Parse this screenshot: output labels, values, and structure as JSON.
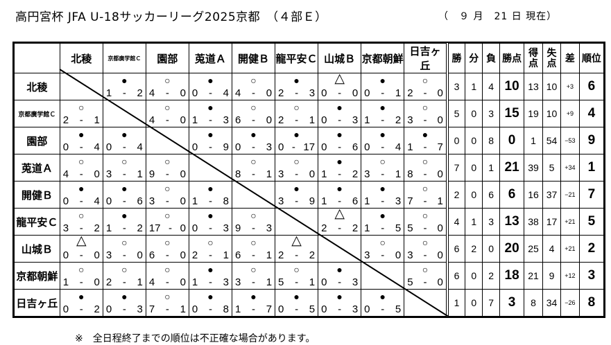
{
  "header": {
    "title": "高円宮杯 JFA U-18サッカーリーグ2025京都　（４部Ｅ）",
    "as_of": "（　９ 月　21 日 現在）"
  },
  "stat_headers": [
    "勝",
    "分",
    "負",
    "勝点",
    "得点",
    "失点",
    "差",
    "順位"
  ],
  "teams": [
    {
      "name": "北稜",
      "small": false
    },
    {
      "name": "京都廣学館Ｃ",
      "small": true
    },
    {
      "name": "園部",
      "small": false
    },
    {
      "name": "莵道Ａ",
      "small": false
    },
    {
      "name": "開健Ｂ",
      "small": false
    },
    {
      "name": "龍平安Ｃ",
      "small": false
    },
    {
      "name": "山城Ｂ",
      "small": false
    },
    {
      "name": "京都朝鮮",
      "small": false
    },
    {
      "name": "日吉ヶ丘",
      "small": false
    }
  ],
  "results": [
    [
      null,
      [
        "●",
        "1",
        "2"
      ],
      [
        "○",
        "4",
        "0"
      ],
      [
        "●",
        "0",
        "4"
      ],
      [
        "○",
        "4",
        "0"
      ],
      [
        "●",
        "2",
        "3"
      ],
      [
        "△",
        "0",
        "0"
      ],
      [
        "●",
        "0",
        "1"
      ],
      [
        "○",
        "2",
        "0"
      ]
    ],
    [
      [
        "○",
        "2",
        "1"
      ],
      null,
      [
        "○",
        "4",
        "0"
      ],
      [
        "●",
        "1",
        "3"
      ],
      [
        "○",
        "6",
        "0"
      ],
      [
        "○",
        "2",
        "1"
      ],
      [
        "●",
        "0",
        "3"
      ],
      [
        "●",
        "1",
        "2"
      ],
      [
        "○",
        "3",
        "0"
      ]
    ],
    [
      [
        "●",
        "0",
        "4"
      ],
      [
        "●",
        "0",
        "4"
      ],
      null,
      [
        "●",
        "0",
        "9"
      ],
      [
        "●",
        "0",
        "3"
      ],
      [
        "●",
        "0",
        "17"
      ],
      [
        "●",
        "0",
        "6"
      ],
      [
        "●",
        "0",
        "4"
      ],
      [
        "●",
        "1",
        "7"
      ]
    ],
    [
      [
        "○",
        "4",
        "0"
      ],
      [
        "○",
        "3",
        "1"
      ],
      [
        "○",
        "9",
        "0"
      ],
      null,
      [
        "○",
        "8",
        "1"
      ],
      [
        "○",
        "3",
        "0"
      ],
      [
        "●",
        "1",
        "2"
      ],
      [
        "○",
        "3",
        "1"
      ],
      [
        "○",
        "8",
        "0"
      ]
    ],
    [
      [
        "●",
        "0",
        "4"
      ],
      [
        "●",
        "0",
        "6"
      ],
      [
        "○",
        "3",
        "0"
      ],
      [
        "●",
        "1",
        "8"
      ],
      null,
      [
        "●",
        "3",
        "9"
      ],
      [
        "●",
        "1",
        "6"
      ],
      [
        "●",
        "1",
        "3"
      ],
      [
        "○",
        "7",
        "1"
      ]
    ],
    [
      [
        "○",
        "3",
        "2"
      ],
      [
        "●",
        "1",
        "2"
      ],
      [
        "○",
        "17",
        "0"
      ],
      [
        "●",
        "0",
        "3"
      ],
      [
        "○",
        "9",
        "3"
      ],
      null,
      [
        "△",
        "2",
        "2"
      ],
      [
        "●",
        "1",
        "5"
      ],
      [
        "○",
        "5",
        "0"
      ]
    ],
    [
      [
        "△",
        "0",
        "0"
      ],
      [
        "○",
        "3",
        "0"
      ],
      [
        "○",
        "6",
        "0"
      ],
      [
        "○",
        "2",
        "1"
      ],
      [
        "○",
        "6",
        "1"
      ],
      [
        "△",
        "2",
        "2"
      ],
      null,
      [
        "○",
        "3",
        "0"
      ],
      [
        "○",
        "3",
        "0"
      ]
    ],
    [
      [
        "○",
        "1",
        "0"
      ],
      [
        "○",
        "2",
        "1"
      ],
      [
        "○",
        "4",
        "0"
      ],
      [
        "●",
        "1",
        "3"
      ],
      [
        "○",
        "3",
        "1"
      ],
      [
        "○",
        "5",
        "1"
      ],
      [
        "●",
        "0",
        "3"
      ],
      null,
      [
        "○",
        "5",
        "0"
      ]
    ],
    [
      [
        "●",
        "0",
        "2"
      ],
      [
        "●",
        "0",
        "3"
      ],
      [
        "○",
        "7",
        "1"
      ],
      [
        "●",
        "0",
        "8"
      ],
      [
        "●",
        "1",
        "7"
      ],
      [
        "●",
        "0",
        "5"
      ],
      [
        "●",
        "0",
        "3"
      ],
      [
        "●",
        "0",
        "5"
      ],
      null
    ]
  ],
  "score_separator": "-",
  "standings": [
    {
      "w": "3",
      "d": "1",
      "l": "4",
      "pts": "10",
      "gf": "13",
      "ga": "10",
      "gd": "+3",
      "rank": "6"
    },
    {
      "w": "5",
      "d": "0",
      "l": "3",
      "pts": "15",
      "gf": "19",
      "ga": "10",
      "gd": "+9",
      "rank": "4"
    },
    {
      "w": "0",
      "d": "0",
      "l": "8",
      "pts": "0",
      "gf": "1",
      "ga": "54",
      "gd": "−53",
      "rank": "9"
    },
    {
      "w": "7",
      "d": "0",
      "l": "1",
      "pts": "21",
      "gf": "39",
      "ga": "5",
      "gd": "+34",
      "rank": "1"
    },
    {
      "w": "2",
      "d": "0",
      "l": "6",
      "pts": "6",
      "gf": "16",
      "ga": "37",
      "gd": "−21",
      "rank": "7"
    },
    {
      "w": "4",
      "d": "1",
      "l": "3",
      "pts": "13",
      "gf": "38",
      "ga": "17",
      "gd": "+21",
      "rank": "5"
    },
    {
      "w": "6",
      "d": "2",
      "l": "0",
      "pts": "20",
      "gf": "25",
      "ga": "4",
      "gd": "+21",
      "rank": "2"
    },
    {
      "w": "6",
      "d": "0",
      "l": "2",
      "pts": "18",
      "gf": "21",
      "ga": "9",
      "gd": "+12",
      "rank": "3"
    },
    {
      "w": "1",
      "d": "0",
      "l": "7",
      "pts": "3",
      "gf": "8",
      "ga": "34",
      "gd": "−26",
      "rank": "8"
    }
  ],
  "footnote": "※　全日程終了までの順位は不正確な場合があります。"
}
